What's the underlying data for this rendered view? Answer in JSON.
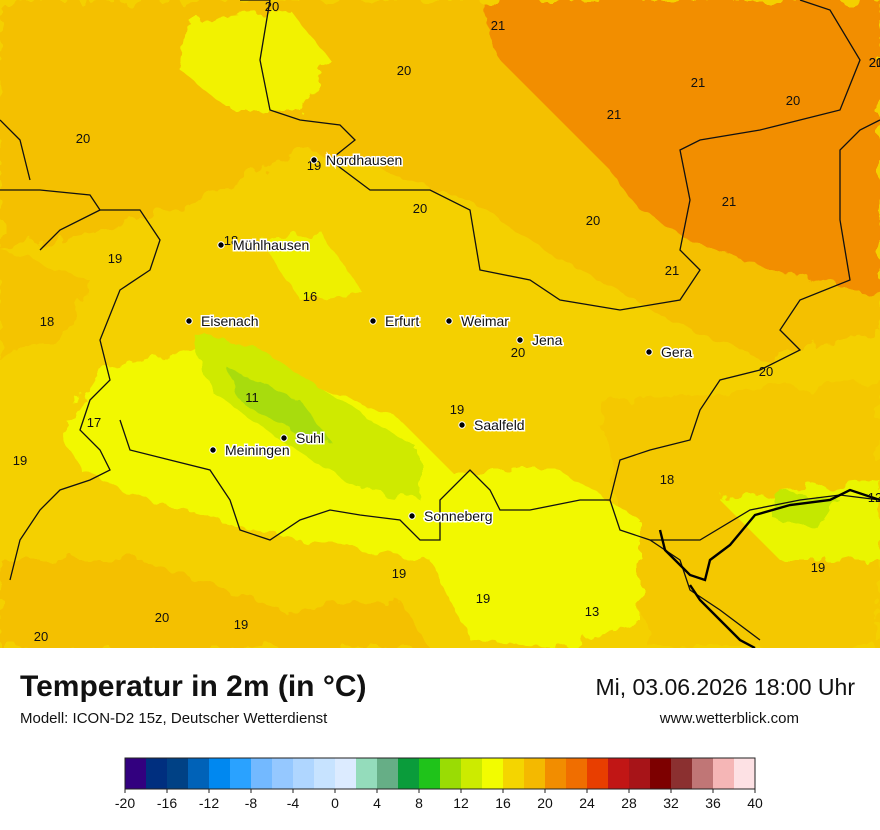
{
  "title": "Temperatur in 2m (in °C)",
  "model": "Modell: ICON-D2 15z, Deutscher Wetterdienst",
  "datetime": "Mi, 03.06.2026 18:00 Uhr",
  "website": "www.wetterblick.com",
  "cities": [
    {
      "name": "Nordhausen"
    },
    {
      "name": "Mühlhausen"
    },
    {
      "name": "Eisenach"
    },
    {
      "name": "Erfurt"
    },
    {
      "name": "Weimar"
    },
    {
      "name": "Jena"
    },
    {
      "name": "Gera"
    },
    {
      "name": "Suhl"
    },
    {
      "name": "Meiningen"
    },
    {
      "name": "Saalfeld"
    },
    {
      "name": "Sonneberg"
    }
  ],
  "temperature_labels": [
    "20",
    "21",
    "20",
    "21",
    "21",
    "20",
    "20",
    "21",
    "19",
    "20",
    "20",
    "18",
    "21",
    "19",
    "16",
    "18",
    "20",
    "20",
    "11",
    "19",
    "17",
    "19",
    "18",
    "12",
    "19",
    "19",
    "20",
    "19",
    "13",
    "20",
    "19",
    "20",
    "21"
  ],
  "colorbar": {
    "ticks": [
      "-20",
      "-16",
      "-12",
      "-8",
      "-4",
      "0",
      "4",
      "8",
      "12",
      "16",
      "20",
      "24",
      "28",
      "32",
      "36",
      "40"
    ],
    "colors": [
      "#32007f",
      "#002f7f",
      "#004185",
      "#0062b8",
      "#0088f0",
      "#2aa2ff",
      "#73b9ff",
      "#95c8ff",
      "#afd6ff",
      "#c7e3ff",
      "#dcebff",
      "#94dcbb",
      "#66ae86",
      "#0a9c3b",
      "#1fc31a",
      "#9adc04",
      "#cceb00",
      "#f2fc00",
      "#f4d500",
      "#f4b900",
      "#f28d00",
      "#f06e00",
      "#e83e00",
      "#c11615",
      "#a71418",
      "#7d0000",
      "#8b3030",
      "#c07676",
      "#f5b6b6",
      "#fde1e4"
    ]
  }
}
